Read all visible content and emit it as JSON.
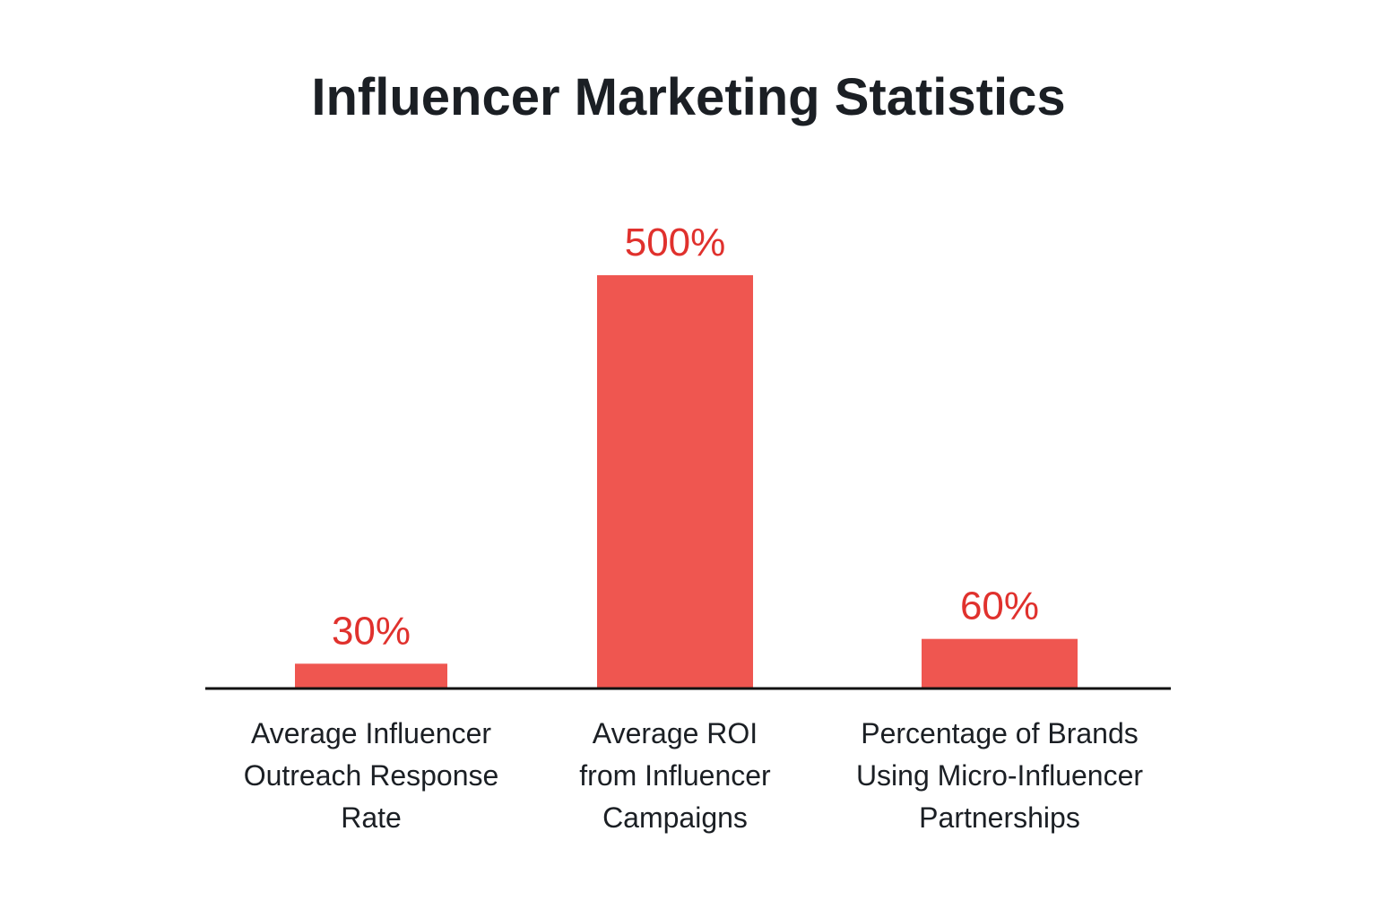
{
  "chart_data": {
    "type": "bar",
    "title": "Influencer Marketing Statistics",
    "xlabel": "",
    "ylabel": "",
    "ylim": [
      0,
      500
    ],
    "grid": false,
    "legend": "none",
    "categories": [
      [
        "Average Influencer",
        "Outreach Response",
        "Rate"
      ],
      [
        "Average ROI",
        "from Influencer",
        "Campaigns"
      ],
      [
        "Percentage of Brands",
        "Using Micro-Influencer",
        "Partnerships"
      ]
    ],
    "values": [
      30,
      500,
      60
    ],
    "value_labels": [
      "30%",
      "500%",
      "60%"
    ],
    "colors": {
      "bar": "#ef5650",
      "value_text": "#e0312d",
      "axis": "#111111",
      "label_text": "#1b1f24",
      "title_text": "#1b1f24"
    }
  }
}
